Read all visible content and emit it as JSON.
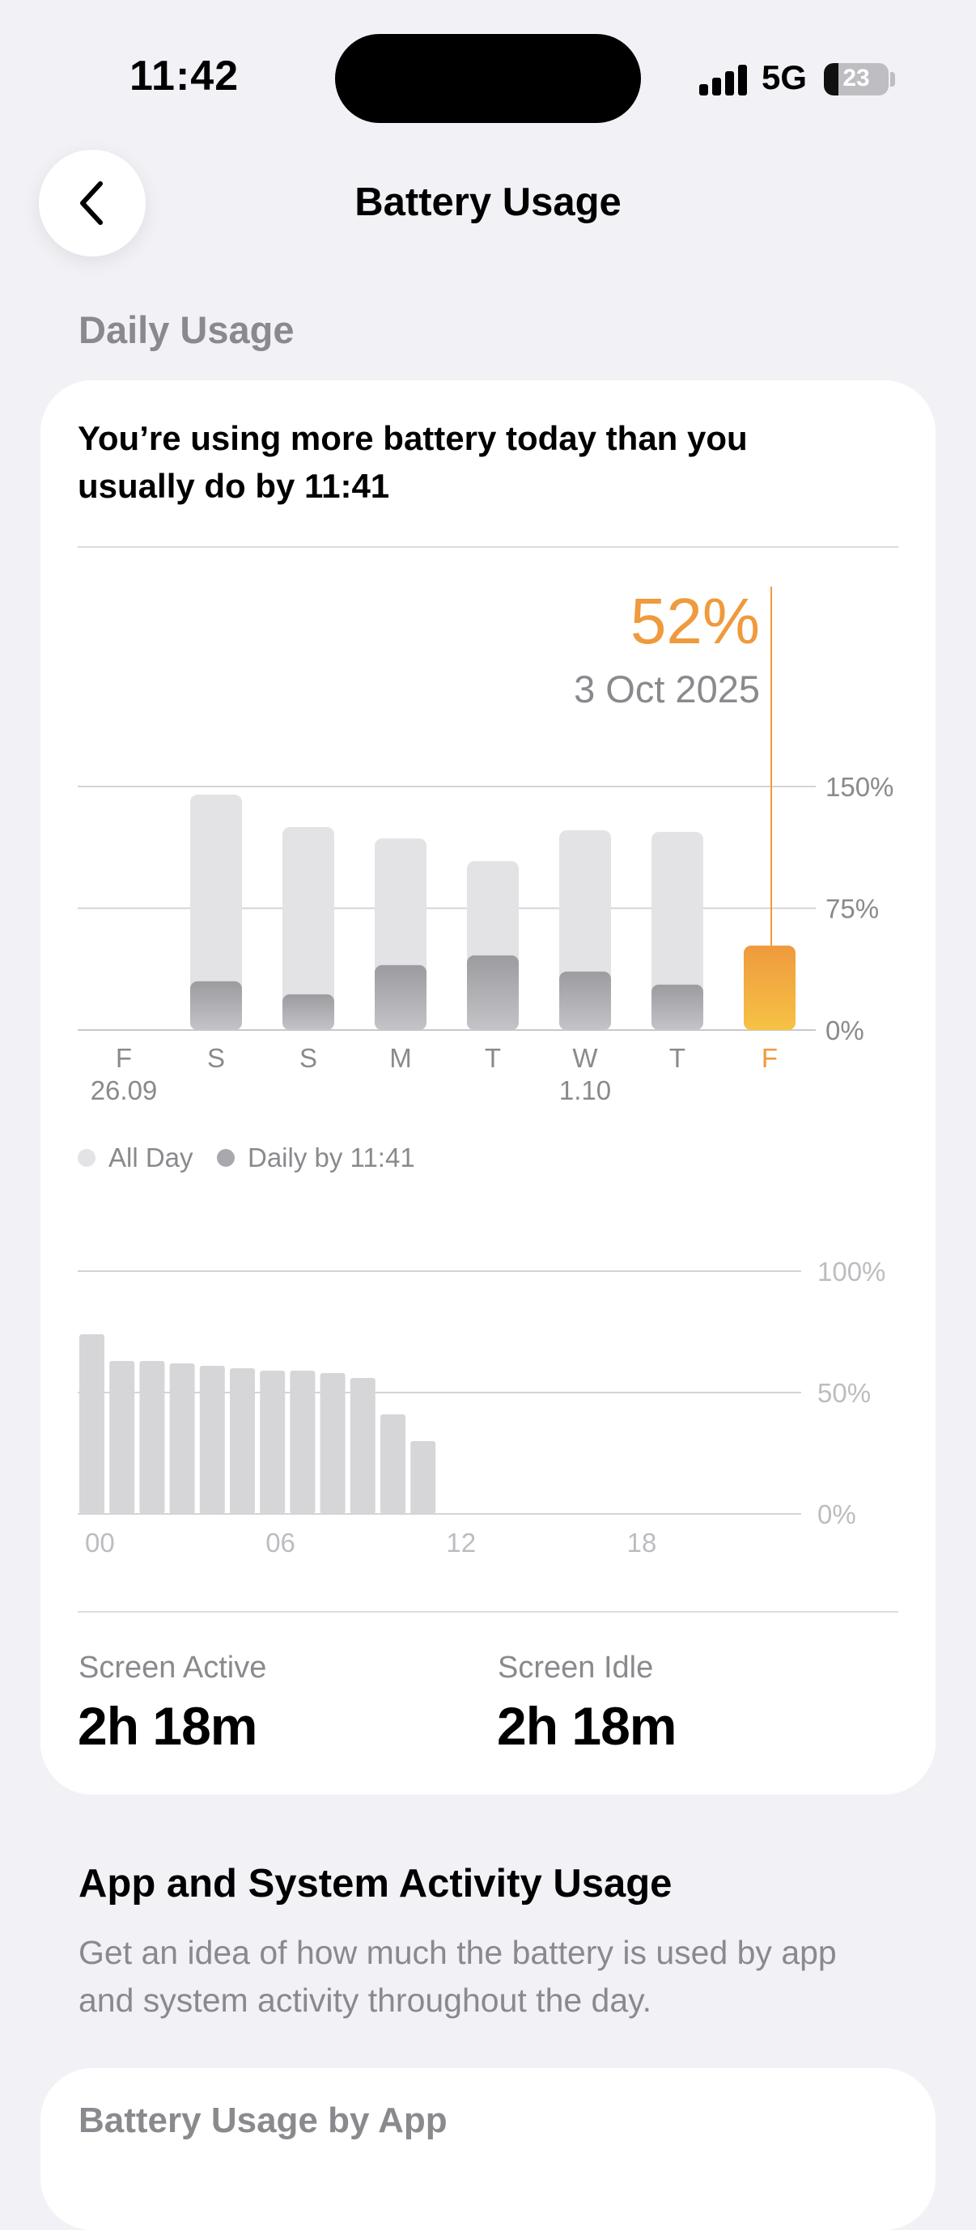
{
  "status_bar": {
    "time": "11:42",
    "network": "5G",
    "battery_level": "23",
    "battery_fraction": 0.23
  },
  "header": {
    "title": "Battery Usage"
  },
  "daily_usage": {
    "section_label": "Daily Usage",
    "headline": "You’re using more battery today than you usually do by 11:41",
    "selected_value": "52%",
    "selected_date": "3 Oct 2025",
    "legend": {
      "all_day": "All Day",
      "daily_by": "Daily by 11:41"
    }
  },
  "stats": {
    "screen_active_label": "Screen Active",
    "screen_active_value": "2h 18m",
    "screen_idle_label": "Screen Idle",
    "screen_idle_value": "2h 18m"
  },
  "activity": {
    "title": "App and System Activity Usage",
    "description": "Get an idea of how much the battery is used by app and system activity throughout the day.",
    "next_card_title": "Battery Usage by App"
  },
  "colors": {
    "accent": "#ef9a3d",
    "accent_light": "#f6c244",
    "bar_light": "#e3e3e5",
    "bar_dark": "#a9a9ad",
    "hourly_bar": "#d6d6d8"
  },
  "chart_data": [
    {
      "type": "bar",
      "categories": [
        "F",
        "S",
        "S",
        "M",
        "T",
        "W",
        "T",
        "F"
      ],
      "sublabels": [
        "26.09",
        "",
        "",
        "",
        "",
        "1.10",
        "",
        ""
      ],
      "series": [
        {
          "name": "All Day",
          "values": [
            null,
            145,
            125,
            118,
            104,
            123,
            122,
            null
          ]
        },
        {
          "name": "Daily by 11:41",
          "values": [
            null,
            30,
            22,
            40,
            46,
            36,
            28,
            52
          ]
        }
      ],
      "highlight_index": 7,
      "yticks": [
        "150%",
        "75%",
        "0%"
      ],
      "ylim": [
        0,
        150
      ]
    },
    {
      "type": "bar",
      "xticks": [
        "00",
        "06",
        "12",
        "18"
      ],
      "yticks": [
        "100%",
        "50%",
        "0%"
      ],
      "values": [
        74,
        63,
        63,
        62,
        61,
        60,
        59,
        59,
        58,
        56,
        41,
        30
      ],
      "ylim": [
        0,
        100
      ],
      "hours_shown": 24
    }
  ]
}
